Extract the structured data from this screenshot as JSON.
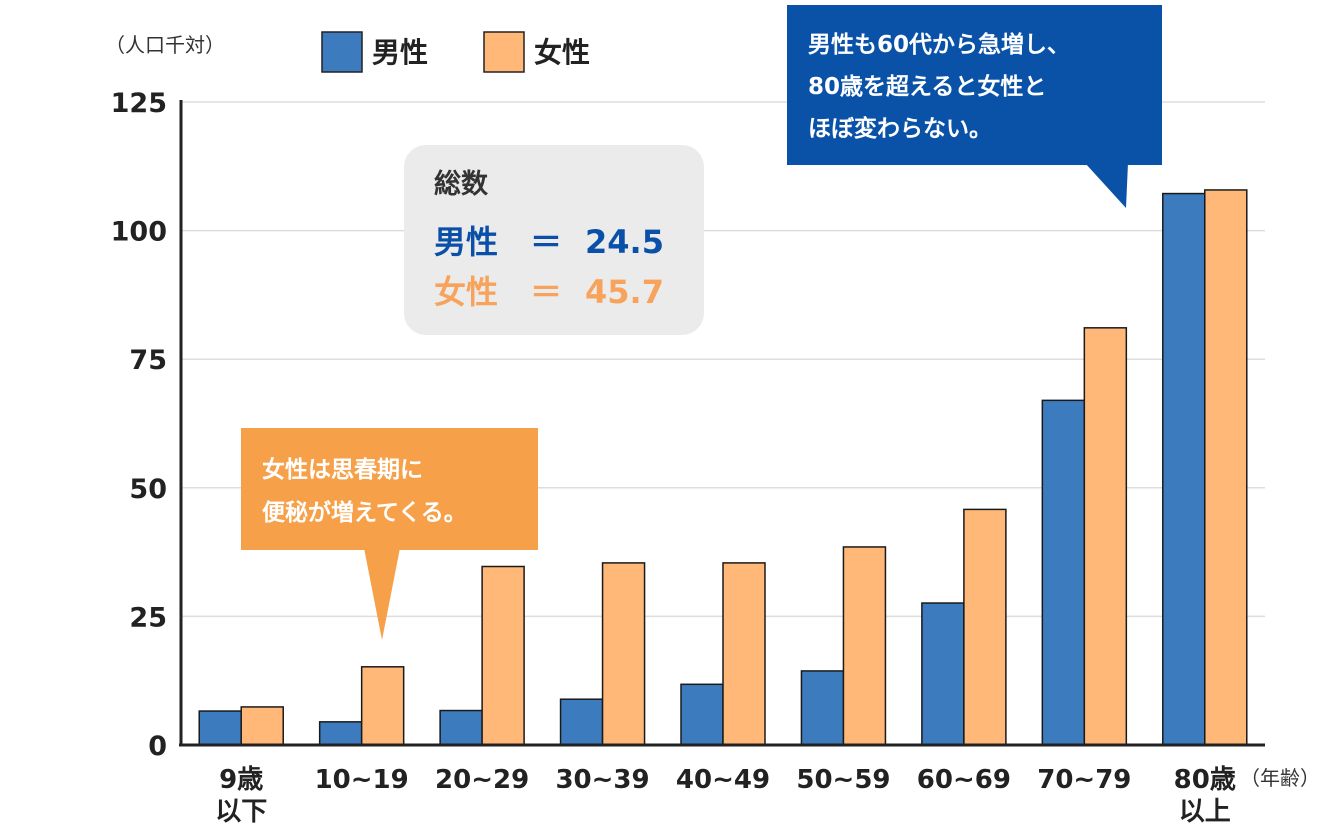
{
  "chart_data": {
    "type": "bar",
    "y_unit": "（人口千対）",
    "x_unit": "（年齢）",
    "categories": [
      [
        "9歳",
        "以下"
      ],
      [
        "10~19"
      ],
      [
        "20~29"
      ],
      [
        "30~39"
      ],
      [
        "40~49"
      ],
      [
        "50~59"
      ],
      [
        "60~69"
      ],
      [
        "70~79"
      ],
      [
        "80歳",
        "以上"
      ]
    ],
    "series": [
      {
        "name": "男性",
        "color": "#3d7bbf",
        "values": [
          6.6,
          4.5,
          6.7,
          8.9,
          11.8,
          14.4,
          27.6,
          67.0,
          107.2
        ]
      },
      {
        "name": "女性",
        "color": "#ffb878",
        "values": [
          7.4,
          15.2,
          34.7,
          35.4,
          35.4,
          38.5,
          45.8,
          81.1,
          107.9
        ]
      }
    ],
    "ylim": [
      0,
      125
    ],
    "yticks": [
      0,
      25,
      50,
      75,
      100,
      125
    ],
    "grid": true,
    "legend_position": "top-left"
  },
  "summary_box": {
    "title": "総数",
    "male_label": "男性",
    "male_eq": "＝",
    "male_value": "24.5",
    "female_label": "女性",
    "female_eq": "＝",
    "female_value": "45.7",
    "male_color": "#0a4fa8",
    "female_color": "#f7a35c"
  },
  "callouts": {
    "female": [
      "女性は思春期に",
      "便秘が増えてくる。"
    ],
    "female_color": "#f7a04a",
    "male": [
      "男性も60代から急増し、",
      "80歳を超えると女性と",
      "ほぼ変わらない。"
    ],
    "male_color": "#0a52a8"
  }
}
